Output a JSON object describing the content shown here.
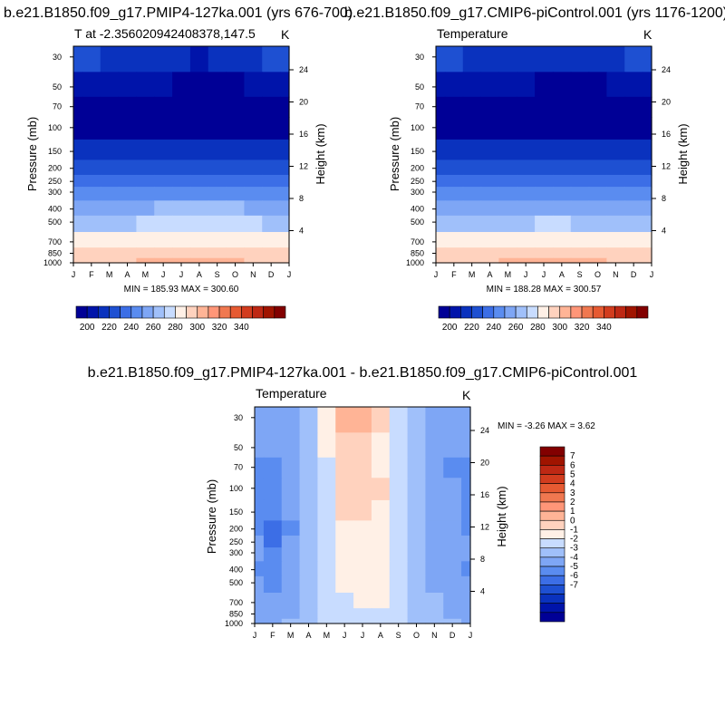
{
  "panels": [
    {
      "title": "b.e21.B1850.f09_g17.PMIP4-127ka.001 (yrs 676-700)",
      "subtitle": "T at -2.356020942408378,147.5",
      "units": "K",
      "ylabel": "Pressure (mb)",
      "ylabel_right": "Height (km)",
      "stats": "MIN = 185.93 MAX = 300.60"
    },
    {
      "title": "b.e21.B1850.f09_g17.CMIP6-piControl.001 (yrs 1176-1200)",
      "subtitle": "Temperature",
      "units": "K",
      "ylabel": "Pressure (mb)",
      "ylabel_right": "Height (km)",
      "stats": "MIN = 188.28 MAX = 300.57"
    },
    {
      "title": "b.e21.B1850.f09_g17.PMIP4-127ka.001 - b.e21.B1850.f09_g17.CMIP6-piControl.001",
      "subtitle": "Temperature",
      "units": "K",
      "ylabel": "Pressure (mb)",
      "ylabel_right": "Height (km)",
      "stats": "MIN =  -3.26 MAX =   3.62"
    }
  ],
  "chart_data": [
    {
      "type": "heatmap",
      "title": "b.e21.B1850.f09_g17.PMIP4-127ka.001 (yrs 676-700)",
      "subtitle": "T at -2.356020942408378,147.5",
      "units": "K",
      "x": [
        "J",
        "F",
        "M",
        "A",
        "M",
        "J",
        "J",
        "A",
        "S",
        "O",
        "N",
        "D",
        "J"
      ],
      "y_pressure": [
        30,
        50,
        70,
        100,
        150,
        200,
        250,
        300,
        400,
        500,
        700,
        850,
        1000
      ],
      "y_height_km": [
        24,
        20,
        16,
        12,
        8,
        4
      ],
      "ylim": [
        1000,
        25
      ],
      "yscale": "log",
      "values": [
        [
          221,
          220,
          219,
          218,
          216,
          213,
          211,
          209,
          211,
          214,
          218,
          220,
          221
        ],
        [
          205,
          205,
          204,
          203,
          202,
          200,
          198,
          197,
          197,
          199,
          202,
          204,
          205
        ],
        [
          195,
          195,
          194,
          193,
          192,
          190,
          188,
          187,
          187,
          189,
          192,
          194,
          195
        ],
        [
          191,
          191,
          190,
          190,
          190,
          189,
          188,
          187,
          187,
          188,
          190,
          191,
          191
        ],
        [
          210,
          210,
          210,
          210,
          210,
          210,
          211,
          211,
          211,
          211,
          210,
          210,
          210
        ],
        [
          221,
          221,
          221,
          221,
          221,
          222,
          222,
          223,
          223,
          222,
          222,
          221,
          221
        ],
        [
          232,
          232,
          232,
          232,
          233,
          233,
          234,
          234,
          234,
          233,
          233,
          232,
          232
        ],
        [
          241,
          241,
          241,
          241,
          242,
          243,
          243,
          244,
          244,
          243,
          242,
          241,
          241
        ],
        [
          258,
          258,
          258,
          259,
          259,
          260,
          261,
          261,
          261,
          260,
          259,
          258,
          258
        ],
        [
          268,
          268,
          268,
          269,
          270,
          271,
          272,
          272,
          271,
          271,
          270,
          269,
          268
        ],
        [
          284,
          284,
          284,
          285,
          286,
          286,
          287,
          287,
          286,
          286,
          285,
          284,
          284
        ],
        [
          292,
          292,
          292,
          293,
          293,
          294,
          294,
          294,
          294,
          293,
          293,
          292,
          292
        ],
        [
          299,
          299,
          299,
          299,
          300,
          300,
          300,
          300,
          300,
          300,
          299,
          299,
          299
        ]
      ],
      "min": 185.93,
      "max": 300.6,
      "levels": [
        200,
        210,
        220,
        230,
        240,
        250,
        260,
        270,
        280,
        290,
        300,
        310,
        320,
        330,
        340
      ],
      "colorbar": {
        "orientation": "horizontal",
        "tick_labels": [
          "200",
          "220",
          "240",
          "260",
          "280",
          "300",
          "320",
          "340"
        ],
        "colors": [
          "#000096",
          "#0014aa",
          "#0a32be",
          "#1e50d2",
          "#3c6ee6",
          "#5a8cf0",
          "#7ea6f5",
          "#a0c0fa",
          "#c8dcff",
          "#fff0e6",
          "#ffd2be",
          "#ffb496",
          "#ff9678",
          "#f07850",
          "#e65a32",
          "#d23c1e",
          "#be2814",
          "#a01400",
          "#820000"
        ]
      }
    },
    {
      "type": "heatmap",
      "title": "b.e21.B1850.f09_g17.CMIP6-piControl.001 (yrs 1176-1200)",
      "subtitle": "Temperature",
      "units": "K",
      "x": [
        "J",
        "F",
        "M",
        "A",
        "M",
        "J",
        "J",
        "A",
        "S",
        "O",
        "N",
        "D",
        "J"
      ],
      "y_pressure": [
        30,
        50,
        70,
        100,
        150,
        200,
        250,
        300,
        400,
        500,
        700,
        850,
        1000
      ],
      "y_height_km": [
        24,
        20,
        16,
        12,
        8,
        4
      ],
      "ylim": [
        1000,
        25
      ],
      "yscale": "log",
      "values": [
        [
          221,
          220,
          219,
          218,
          216,
          214,
          212,
          210,
          212,
          215,
          218,
          220,
          221
        ],
        [
          205,
          205,
          204,
          203,
          202,
          200,
          198,
          197,
          197,
          199,
          202,
          204,
          205
        ],
        [
          195,
          195,
          194,
          193,
          192,
          190,
          189,
          188,
          188,
          189,
          192,
          194,
          195
        ],
        [
          191,
          191,
          190,
          190,
          190,
          189,
          188,
          188,
          188,
          189,
          190,
          191,
          191
        ],
        [
          210,
          210,
          210,
          210,
          210,
          210,
          210,
          210,
          210,
          210,
          210,
          210,
          210
        ],
        [
          221,
          221,
          221,
          221,
          221,
          221,
          222,
          222,
          222,
          222,
          221,
          221,
          221
        ],
        [
          232,
          232,
          232,
          232,
          232,
          233,
          233,
          233,
          233,
          233,
          232,
          232,
          232
        ],
        [
          241,
          241,
          241,
          241,
          242,
          242,
          242,
          242,
          242,
          242,
          242,
          241,
          241
        ],
        [
          258,
          258,
          258,
          258,
          259,
          259,
          259,
          259,
          259,
          259,
          259,
          258,
          258
        ],
        [
          268,
          268,
          268,
          268,
          269,
          269,
          270,
          270,
          269,
          269,
          269,
          268,
          268
        ],
        [
          284,
          284,
          284,
          284,
          285,
          285,
          285,
          285,
          285,
          285,
          285,
          284,
          284
        ],
        [
          292,
          292,
          292,
          292,
          293,
          293,
          293,
          293,
          293,
          293,
          292,
          292,
          292
        ],
        [
          299,
          299,
          299,
          299,
          300,
          300,
          300,
          300,
          300,
          300,
          299,
          299,
          299
        ]
      ],
      "min": 188.28,
      "max": 300.57,
      "levels": [
        200,
        210,
        220,
        230,
        240,
        250,
        260,
        270,
        280,
        290,
        300,
        310,
        320,
        330,
        340
      ],
      "colorbar": {
        "orientation": "horizontal",
        "tick_labels": [
          "200",
          "220",
          "240",
          "260",
          "280",
          "300",
          "320",
          "340"
        ],
        "colors": [
          "#000096",
          "#0014aa",
          "#0a32be",
          "#1e50d2",
          "#3c6ee6",
          "#5a8cf0",
          "#7ea6f5",
          "#a0c0fa",
          "#c8dcff",
          "#fff0e6",
          "#ffd2be",
          "#ffb496",
          "#ff9678",
          "#f07850",
          "#e65a32",
          "#d23c1e",
          "#be2814",
          "#a01400",
          "#820000"
        ]
      }
    },
    {
      "type": "heatmap",
      "title": "b.e21.B1850.f09_g17.PMIP4-127ka.001 - b.e21.B1850.f09_g17.CMIP6-piControl.001",
      "subtitle": "Temperature",
      "units": "K",
      "x": [
        "J",
        "F",
        "M",
        "A",
        "M",
        "J",
        "J",
        "A",
        "S",
        "O",
        "N",
        "D",
        "J"
      ],
      "y_pressure": [
        30,
        50,
        70,
        100,
        150,
        200,
        250,
        300,
        400,
        500,
        700,
        850,
        1000
      ],
      "y_height_km": [
        24,
        20,
        16,
        12,
        8,
        4
      ],
      "ylim": [
        1000,
        25
      ],
      "yscale": "log",
      "values": [
        [
          -1.5,
          -1.8,
          -1.2,
          -0.3,
          1.5,
          3.3,
          3.5,
          2.0,
          0.5,
          -0.4,
          -1.5,
          -1.8,
          -1.5
        ],
        [
          -1.8,
          -2.0,
          -1.5,
          -0.5,
          1.0,
          2.5,
          2.8,
          1.8,
          0.4,
          -0.5,
          -1.6,
          -2.0,
          -1.8
        ],
        [
          -2.2,
          -2.2,
          -1.5,
          -0.5,
          0.8,
          2.5,
          2.8,
          1.8,
          0.3,
          -0.4,
          -1.6,
          -2.2,
          -2.2
        ],
        [
          -2.5,
          -2.8,
          -1.8,
          -0.6,
          0.6,
          2.3,
          2.6,
          2.0,
          0.3,
          -0.4,
          -1.5,
          -2.0,
          -2.5
        ],
        [
          -2.5,
          -3.0,
          -2.0,
          -0.8,
          0.5,
          2.0,
          2.4,
          1.8,
          0.2,
          -0.5,
          -1.5,
          -2.0,
          -2.5
        ],
        [
          -2.3,
          -3.2,
          -2.2,
          -0.8,
          0.4,
          1.6,
          1.8,
          1.5,
          0.2,
          -0.6,
          -1.5,
          -1.8,
          -2.3
        ],
        [
          -2.0,
          -3.2,
          -2.0,
          -0.8,
          0.4,
          1.5,
          1.6,
          1.4,
          0.2,
          -0.6,
          -1.5,
          -1.8,
          -2.0
        ],
        [
          -2.0,
          -2.8,
          -1.8,
          -0.7,
          0.4,
          1.4,
          1.5,
          1.3,
          0.3,
          -0.5,
          -1.4,
          -1.7,
          -2.0
        ],
        [
          -2.2,
          -2.5,
          -1.8,
          -0.6,
          0.4,
          1.3,
          1.4,
          1.2,
          0.3,
          -0.5,
          -1.4,
          -1.6,
          -2.2
        ],
        [
          -1.8,
          -2.2,
          -1.8,
          -0.6,
          0.4,
          1.2,
          1.3,
          1.2,
          0.3,
          -0.4,
          -1.3,
          -1.4,
          -1.8
        ],
        [
          -1.5,
          -2.0,
          -1.5,
          -0.5,
          0.3,
          0.9,
          1.1,
          1.0,
          0.3,
          -0.3,
          -1.0,
          -1.2,
          -1.5
        ],
        [
          -1.5,
          -1.8,
          -1.3,
          -0.4,
          0.2,
          0.5,
          0.6,
          0.5,
          0.2,
          -0.3,
          -1.0,
          -1.2,
          -1.5
        ],
        [
          -1.2,
          -1.5,
          -1.0,
          -0.3,
          0.1,
          0.3,
          0.4,
          0.3,
          0.1,
          -0.2,
          -0.8,
          -1.0,
          -1.2
        ]
      ],
      "min": -3.26,
      "max": 3.62,
      "levels": [
        -7,
        -6,
        -5,
        -4,
        -3,
        -2,
        -1,
        0,
        1,
        2,
        3,
        4,
        5,
        6,
        7
      ],
      "colorbar": {
        "orientation": "vertical",
        "tick_labels": [
          "7",
          "6",
          "5",
          "4",
          "3",
          "2",
          "1",
          "0",
          "-1",
          "-2",
          "-3",
          "-4",
          "-5",
          "-6",
          "-7"
        ],
        "colors": [
          "#000096",
          "#0014aa",
          "#0a32be",
          "#1e50d2",
          "#3c6ee6",
          "#5a8cf0",
          "#7ea6f5",
          "#a0c0fa",
          "#c8dcff",
          "#fff0e6",
          "#ffd2be",
          "#ffb496",
          "#ff9678",
          "#f07850",
          "#e65a32",
          "#d23c1e",
          "#be2814",
          "#a01400",
          "#820000"
        ]
      }
    }
  ]
}
